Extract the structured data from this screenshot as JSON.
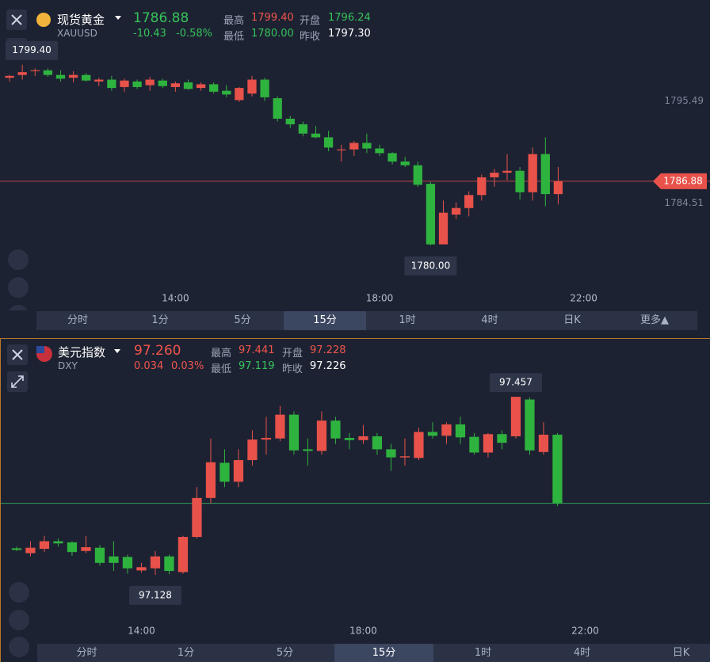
{
  "panels": [
    {
      "name": "现货黄金",
      "symbol": "XAUUSD",
      "price": "1786.88",
      "change": "-10.43",
      "change_pct": "-0.58%",
      "stats": [
        {
          "label": "最高",
          "value": "1799.40"
        },
        {
          "label": "开盘",
          "value": "1796.24"
        },
        {
          "label": "最低",
          "value": "1780.00"
        },
        {
          "label": "昨收",
          "value": "1797.30"
        }
      ]
    },
    {
      "name": "美元指数",
      "symbol": "DXY",
      "price": "97.260",
      "change": "0.034",
      "change_pct": "0.03%",
      "stats": [
        {
          "label": "最高",
          "value": "97.441"
        },
        {
          "label": "开盘",
          "value": "97.228"
        },
        {
          "label": "最低",
          "value": "97.119"
        },
        {
          "label": "昨收",
          "value": "97.226"
        }
      ]
    }
  ],
  "tabs": [
    "分时",
    "1分",
    "5分",
    "15分",
    "1时",
    "4时",
    "日K",
    "更多▲"
  ],
  "active_tab": 3,
  "chart_data": [
    {
      "type": "candlestick",
      "up_color": "#e8524a",
      "down_color": "#2fb33f",
      "open": [
        1798.0,
        1798.3,
        1798.7,
        1798.8,
        1798.3,
        1798.0,
        1798.3,
        1797.6,
        1797.8,
        1797.0,
        1797.6,
        1797.2,
        1797.7,
        1797.0,
        1797.5,
        1796.9,
        1797.3,
        1796.6,
        1795.6,
        1796.3,
        1797.8,
        1795.8,
        1793.6,
        1793.0,
        1792.0,
        1791.6,
        1790.2,
        1790.3,
        1791.0,
        1790.4,
        1789.9,
        1789.0,
        1788.6,
        1786.6,
        1780.1,
        1783.3,
        1784.0,
        1785.4,
        1787.3,
        1787.8,
        1788.0,
        1785.7,
        1789.8,
        1785.5
      ],
      "high": [
        1798.3,
        1799.4,
        1799.0,
        1799.0,
        1798.8,
        1798.7,
        1798.5,
        1798.0,
        1798.2,
        1797.9,
        1797.8,
        1798.1,
        1797.9,
        1797.6,
        1797.8,
        1797.5,
        1797.5,
        1797.2,
        1797.0,
        1798.2,
        1798.0,
        1796.0,
        1793.9,
        1793.3,
        1792.8,
        1792.3,
        1790.8,
        1791.2,
        1792.0,
        1790.8,
        1790.0,
        1789.5,
        1789.0,
        1786.8,
        1784.8,
        1784.6,
        1785.8,
        1787.6,
        1788.2,
        1789.8,
        1788.4,
        1790.5,
        1791.6,
        1788.4
      ],
      "low": [
        1797.6,
        1797.8,
        1798.2,
        1798.1,
        1797.6,
        1797.5,
        1797.6,
        1797.1,
        1796.6,
        1796.5,
        1796.8,
        1796.6,
        1796.9,
        1796.5,
        1796.7,
        1796.6,
        1796.3,
        1795.9,
        1795.4,
        1796.0,
        1795.5,
        1793.3,
        1792.6,
        1791.7,
        1791.5,
        1790.1,
        1789.0,
        1789.6,
        1789.9,
        1789.6,
        1788.7,
        1788.4,
        1786.3,
        1780.0,
        1780.1,
        1782.8,
        1783.1,
        1784.8,
        1786.3,
        1787.0,
        1784.9,
        1784.8,
        1784.2,
        1784.4
      ],
      "close": [
        1798.2,
        1798.6,
        1798.8,
        1798.3,
        1797.9,
        1798.3,
        1797.7,
        1797.8,
        1796.9,
        1797.7,
        1797.0,
        1797.8,
        1797.1,
        1797.4,
        1796.8,
        1797.3,
        1796.5,
        1796.2,
        1796.9,
        1797.8,
        1795.9,
        1793.6,
        1793.0,
        1792.0,
        1791.6,
        1790.5,
        1790.3,
        1791.0,
        1790.4,
        1789.9,
        1789.0,
        1788.6,
        1786.5,
        1780.1,
        1783.5,
        1784.0,
        1785.4,
        1787.3,
        1787.8,
        1788.0,
        1785.7,
        1789.8,
        1785.5,
        1786.88
      ],
      "xlim": [
        -0.75,
        54.9
      ],
      "xticks": [
        {
          "value": 13,
          "label": "14:00"
        },
        {
          "value": 29,
          "label": "18:00"
        },
        {
          "value": 45,
          "label": "22:00"
        }
      ],
      "ylim": [
        1775.3,
        1802.1
      ],
      "yticks": [
        1784.51,
        1795.49
      ],
      "last_price": {
        "value": 1786.88,
        "label": "1786.88"
      },
      "annotations": [
        {
          "value": 1799.4,
          "label": "1799.40"
        },
        {
          "value": 1780,
          "label": "1780.00"
        }
      ]
    },
    {
      "type": "candlestick",
      "up_color": "#e8524a",
      "down_color": "#2fb33f",
      "open": [
        97.177,
        97.168,
        97.176,
        97.19,
        97.188,
        97.172,
        97.178,
        97.162,
        97.161,
        97.136,
        97.14,
        97.162,
        97.133,
        97.198,
        97.27,
        97.335,
        97.3,
        97.34,
        97.378,
        97.38,
        97.424,
        97.36,
        97.357,
        97.413,
        97.381,
        97.377,
        97.384,
        97.36,
        97.345,
        97.344,
        97.392,
        97.385,
        97.406,
        97.383,
        97.354,
        97.388,
        97.384,
        97.452,
        97.355,
        97.387
      ],
      "high": [
        97.18,
        97.19,
        97.2,
        97.195,
        97.19,
        97.2,
        97.183,
        97.19,
        97.165,
        97.15,
        97.172,
        97.165,
        97.2,
        97.29,
        97.38,
        97.36,
        97.36,
        97.395,
        97.42,
        97.44,
        97.43,
        97.38,
        97.43,
        97.42,
        97.39,
        97.405,
        97.39,
        97.37,
        97.38,
        97.4,
        97.41,
        97.41,
        97.42,
        97.39,
        97.39,
        97.395,
        97.457,
        97.456,
        97.41,
        97.39
      ],
      "low": [
        97.172,
        97.162,
        97.17,
        97.18,
        97.163,
        97.168,
        97.145,
        97.135,
        97.13,
        97.132,
        97.128,
        97.129,
        97.13,
        97.195,
        97.26,
        97.29,
        97.29,
        97.33,
        97.35,
        97.375,
        97.35,
        97.33,
        97.35,
        97.37,
        97.36,
        97.37,
        97.35,
        97.32,
        97.33,
        97.34,
        97.38,
        97.37,
        97.37,
        97.35,
        97.345,
        97.36,
        97.38,
        97.35,
        97.35,
        97.255
      ],
      "close": [
        97.174,
        97.178,
        97.19,
        97.186,
        97.17,
        97.179,
        97.15,
        97.15,
        97.14,
        97.142,
        97.162,
        97.135,
        97.198,
        97.27,
        97.336,
        97.3,
        97.34,
        97.378,
        97.381,
        97.424,
        97.358,
        97.357,
        97.413,
        97.38,
        97.377,
        97.384,
        97.36,
        97.345,
        97.347,
        97.392,
        97.385,
        97.406,
        97.382,
        97.354,
        97.388,
        97.372,
        97.457,
        97.358,
        97.387,
        97.26
      ],
      "xlim": [
        -1.14,
        50.06
      ],
      "xticks": [
        {
          "value": 9,
          "label": "14:00"
        },
        {
          "value": 25,
          "label": "18:00"
        },
        {
          "value": 41,
          "label": "22:00"
        }
      ],
      "ylim": [
        97.018,
        97.545
      ],
      "last_price": 97.26,
      "annotations": [
        {
          "value": 97.457,
          "label": "97.457"
        },
        {
          "value": 97.128,
          "label": "97.128"
        }
      ]
    }
  ]
}
